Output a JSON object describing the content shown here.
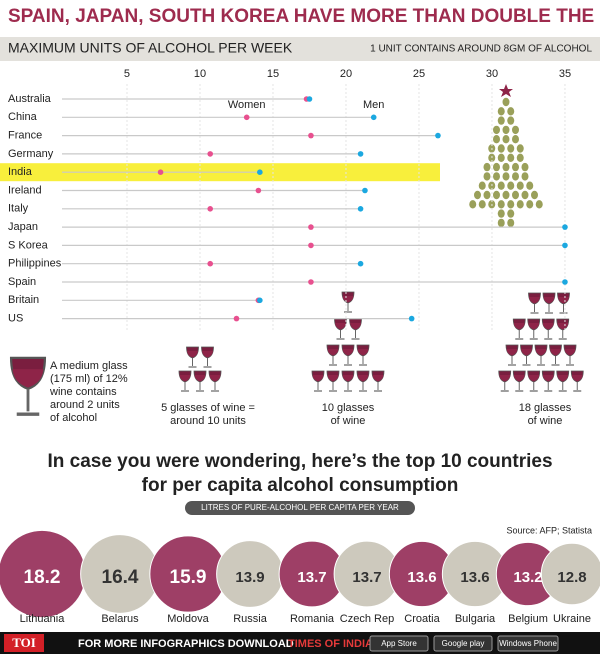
{
  "title": "SPAIN, JAPAN, SOUTH KOREA HAVE MORE THAN DOUBLE THE LEVEL FOR INDIA",
  "chart_data": [
    {
      "type": "dot",
      "title": "MAXIMUM UNITS OF ALCOHOL PER WEEK",
      "note": "1 UNIT CONTAINS AROUND 8GM OF ALCOHOL",
      "categories": [
        "Australia",
        "China",
        "France",
        "Germany",
        "India",
        "Ireland",
        "Italy",
        "Japan",
        "S Korea",
        "Philippines",
        "Spain",
        "Britain",
        "US"
      ],
      "series": [
        {
          "name": "Women",
          "color": "#e8508f",
          "values": [
            17.3,
            13.2,
            17.6,
            10.7,
            7.3,
            14,
            10.7,
            17.6,
            17.6,
            10.7,
            17.6,
            14,
            12.5
          ]
        },
        {
          "name": "Men",
          "color": "#1ba8e0",
          "values": [
            17.5,
            21.9,
            26.3,
            21,
            14.1,
            21.3,
            21,
            35,
            35,
            21,
            35,
            14.1,
            24.5
          ]
        }
      ],
      "xlim": [
        0,
        37.4
      ],
      "xticks": [
        5,
        10,
        15,
        20,
        25,
        30,
        35
      ],
      "grid": true,
      "highlight_index": 4,
      "highlight_color": "#f8ef3c"
    },
    {
      "type": "bubble",
      "title": [
        "In case you were wondering, here’s the top 10 countries",
        "for per capita alcohol consumption"
      ],
      "subtitle": "LITRES OF PURE-ALCOHOL PER CAPITA PER YEAR",
      "source": "Source: AFP; Statista",
      "categories": [
        "Lithuania",
        "Belarus",
        "Moldova",
        "Russia",
        "Romania",
        "Czech Rep",
        "Croatia",
        "Bulgaria",
        "Belgium",
        "Ukraine"
      ],
      "values": [
        18.2,
        16.4,
        15.9,
        13.9,
        13.7,
        13.7,
        13.6,
        13.6,
        13.2,
        12.8
      ],
      "colors": [
        "#9e3f66",
        "#cdc9bd"
      ]
    }
  ],
  "annotations": {
    "glass_note": [
      "A medium glass",
      "(175 ml) of 12%",
      "wine contains",
      "around 2 units",
      "of alcohol"
    ],
    "five": [
      "5 glasses of wine =",
      "around 10 units"
    ],
    "ten": [
      "10 glasses",
      "of wine"
    ],
    "eighteen": [
      "18 glasses",
      "of wine"
    ]
  },
  "footer": {
    "logo": "TOI",
    "text": "FOR MORE  INFOGRAPHICS DOWNLOAD",
    "app": "TIMES OF INDIA APP",
    "badges": [
      "App Store",
      "Google play",
      "Windows Phone"
    ]
  }
}
